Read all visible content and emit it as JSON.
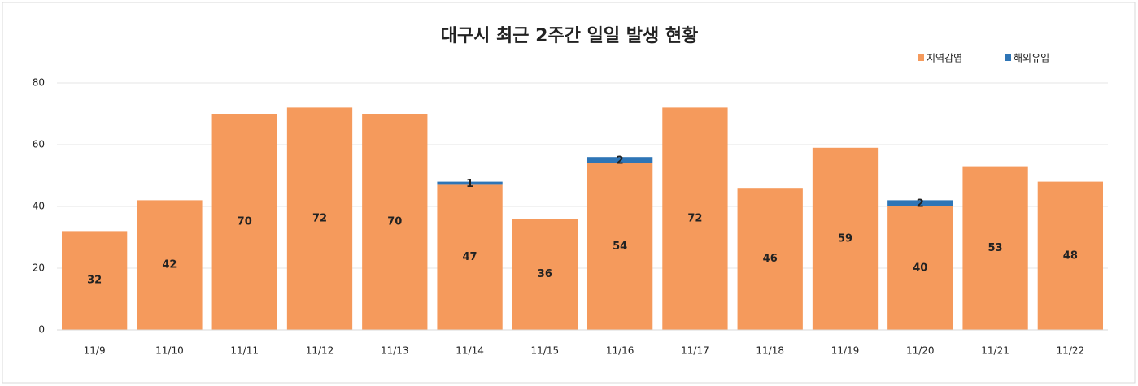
{
  "chart_data": {
    "type": "stacked-bar",
    "title": "대구시 최근 2주간 일일 발생 현황",
    "categories": [
      "11/9",
      "11/10",
      "11/11",
      "11/12",
      "11/13",
      "11/14",
      "11/15",
      "11/16",
      "11/17",
      "11/18",
      "11/19",
      "11/20",
      "11/21",
      "11/22"
    ],
    "series": [
      {
        "name": "지역감염",
        "color": "#f59a5c",
        "values": [
          32,
          42,
          70,
          72,
          70,
          47,
          36,
          54,
          72,
          46,
          59,
          40,
          53,
          48
        ]
      },
      {
        "name": "해외유입",
        "color": "#2e75b6",
        "values": [
          0,
          0,
          0,
          0,
          0,
          1,
          0,
          2,
          0,
          0,
          0,
          2,
          0,
          0
        ]
      }
    ],
    "ylim": [
      0,
      80
    ],
    "yticks": [
      0,
      20,
      40,
      60,
      80
    ],
    "grid": true,
    "legend": "top-right"
  }
}
